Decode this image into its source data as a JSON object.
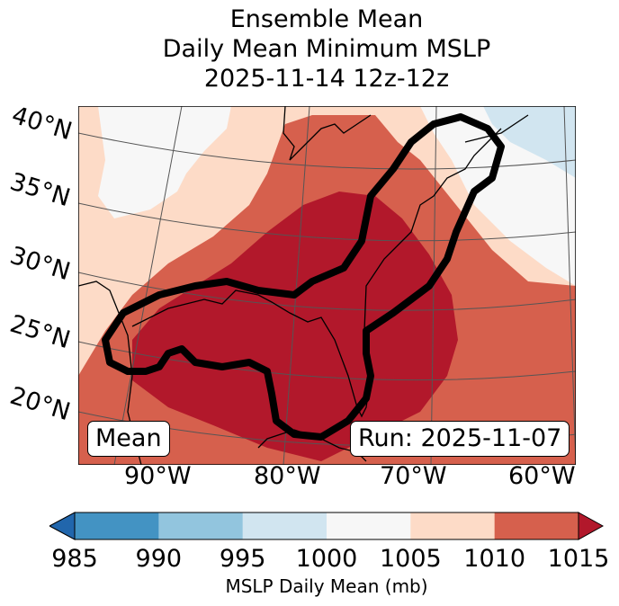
{
  "title": {
    "line1": "Ensemble Mean",
    "line2": "Daily Mean Minimum MSLP",
    "line3": "2025-11-14 12z-12z"
  },
  "map": {
    "latitude_labels": [
      "40°N",
      "35°N",
      "30°N",
      "25°N",
      "20°N"
    ],
    "longitude_labels": [
      "90°W",
      "80°W",
      "70°W",
      "60°W"
    ],
    "left_box": "Mean",
    "right_box": "Run: 2025-11-07",
    "region": "Eastern United States, Gulf of Mexico, Western Atlantic",
    "contour": "Thick black outline enclosing Gulf of Mexico, Florida and US East Coast to Nova Scotia"
  },
  "colorbar": {
    "label": "MSLP Daily Mean (mb)",
    "ticks": [
      "985",
      "990",
      "995",
      "1000",
      "1005",
      "1010",
      "1015"
    ],
    "extend": "both",
    "bins": [
      {
        "min": 985,
        "max": 990,
        "color": "#4393c3"
      },
      {
        "min": 990,
        "max": 995,
        "color": "#92c5de"
      },
      {
        "min": 995,
        "max": 1000,
        "color": "#d1e5f0"
      },
      {
        "min": 1000,
        "max": 1005,
        "color": "#f7f7f7"
      },
      {
        "min": 1005,
        "max": 1010,
        "color": "#fddbc7"
      },
      {
        "min": 1010,
        "max": 1015,
        "color": "#d6604d"
      }
    ],
    "under_color": "#2166ac",
    "over_color": "#b2182b"
  }
}
